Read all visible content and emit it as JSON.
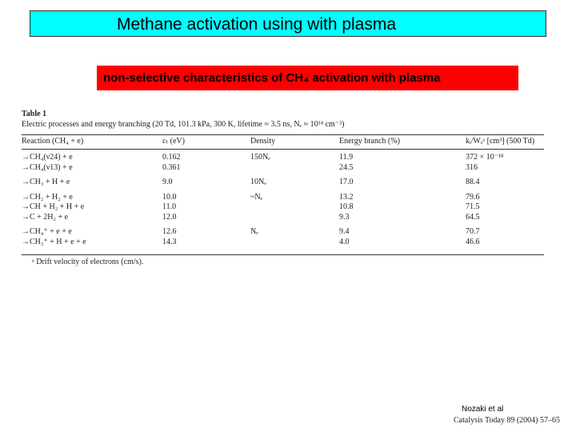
{
  "header": {
    "title": "Methane activation using with plasma",
    "subtitle": "non-selective characteristics of CH₄ activation with plasma"
  },
  "table": {
    "caption": "Table 1",
    "description": "Electric processes and energy branching (20 Td, 101.3 kPa, 300 K, lifetime ≈ 3.5 ns, Nₑ ≈ 10¹⁴ cm⁻³)",
    "columns": [
      "Reaction (CH₄ + e)",
      "εₜ (eV)",
      "Density",
      "Energy branch (%)",
      "kᵢ/Wₑᵃ [cm³] (500 Td)"
    ],
    "groups": [
      [
        {
          "reaction": "→CH₄(ν24) + e",
          "energy": "0.162",
          "density": "150Nₑ",
          "branch": "11.9",
          "rate": "372 × 10⁻¹⁸"
        },
        {
          "reaction": "→CH₄(ν13) + e",
          "energy": "0.361",
          "branch": "24.5",
          "rate": "316"
        }
      ],
      [
        {
          "reaction": "→CH₃ + H + e",
          "energy": "9.0",
          "density": "10Nₑ",
          "branch": "17.0",
          "rate": "88.4"
        }
      ],
      [
        {
          "reaction": "→CH₂ + H₂ + e",
          "energy": "10.0",
          "density": "~Nₑ",
          "branch": "13.2",
          "rate": "79.6"
        },
        {
          "reaction": "→CH + H₂ + H + e",
          "energy": "11.0",
          "branch": "10.8",
          "rate": "71.5"
        },
        {
          "reaction": "→C + 2H₂ + e",
          "energy": "12.0",
          "branch": "9.3",
          "rate": "64.5"
        }
      ],
      [
        {
          "reaction": "→CH₄⁺ + e + e",
          "energy": "12.6",
          "density": "Nₑ",
          "branch": "9.4",
          "rate": "70.7"
        },
        {
          "reaction": "→CH₃⁺ + H + e + e",
          "energy": "14.3",
          "branch": "4.0",
          "rate": "46.6"
        }
      ]
    ],
    "footnote": "ᵃ Drift velocity of electrons (cm/s)."
  },
  "citation": {
    "authors": "Nozaki et al",
    "source": "Catalysis Today 89 (2004) 57–65"
  }
}
